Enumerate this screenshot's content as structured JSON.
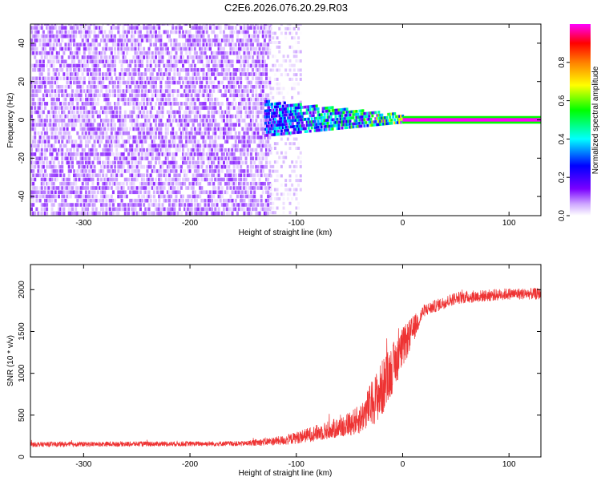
{
  "title": "C2E6.2026.076.20.29.R03",
  "chart_data": [
    {
      "type": "heatmap",
      "xlabel": "Height of straight line (km)",
      "ylabel": "Frequency (Hz)",
      "xlim": [
        -350,
        130
      ],
      "ylim": [
        -50,
        50
      ],
      "xticks": [
        -300,
        -200,
        -100,
        0,
        100
      ],
      "yticks": [
        -40,
        -20,
        0,
        20,
        40
      ],
      "colorbar": {
        "label": "Normalized spectral amplitude",
        "range": [
          0.0,
          1.0
        ],
        "ticks": [
          0.0,
          0.2,
          0.4,
          0.6,
          0.8
        ],
        "colormap": [
          "#ffffff",
          "#7a00ff",
          "#0000ff",
          "#00ffff",
          "#00ff00",
          "#ffff00",
          "#ff8000",
          "#ff0000",
          "#ff00ff"
        ]
      },
      "regions": [
        {
          "x": [
            -350,
            -125
          ],
          "y": [
            -50,
            50
          ],
          "amplitude": [
            0.02,
            0.12
          ]
        },
        {
          "x": [
            -125,
            -95
          ],
          "y": [
            -50,
            50
          ],
          "amplitude": [
            0.0,
            0.06
          ]
        },
        {
          "x": [
            -130,
            0
          ],
          "y": [
            -6,
            8
          ],
          "amplitude": [
            0.1,
            0.7
          ]
        },
        {
          "x": [
            0,
            130
          ],
          "y": [
            0,
            0
          ],
          "amplitude": [
            1.0,
            1.0
          ]
        }
      ]
    },
    {
      "type": "line",
      "xlabel": "Height of straight line (km)",
      "ylabel": "SNR (10 * v/v)",
      "xlim": [
        -350,
        130
      ],
      "ylim": [
        0,
        2300
      ],
      "xticks": [
        -300,
        -200,
        -100,
        0,
        100
      ],
      "yticks": [
        0,
        500,
        1000,
        1500,
        2000
      ],
      "color": "#ee3333",
      "envelope": {
        "x": [
          -350,
          -150,
          -110,
          -60,
          -40,
          -20,
          0,
          20,
          50,
          100,
          130
        ],
        "mean": [
          150,
          160,
          200,
          350,
          450,
          800,
          1300,
          1750,
          1900,
          1950,
          1950
        ],
        "spread": [
          60,
          60,
          120,
          250,
          350,
          700,
          500,
          150,
          150,
          140,
          140
        ]
      }
    }
  ]
}
